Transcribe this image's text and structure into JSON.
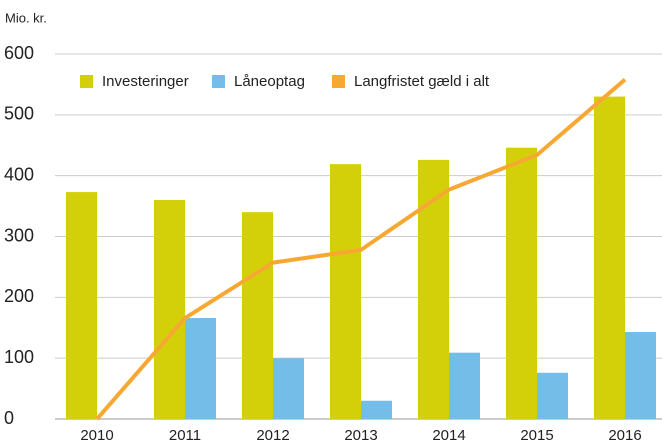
{
  "chart_data": {
    "type": "bar",
    "y_label": "Mio. kr.",
    "categories": [
      "2010",
      "2011",
      "2012",
      "2013",
      "2014",
      "2015",
      "2016"
    ],
    "series": [
      {
        "name": "Investeringer",
        "color": "#d3d00a",
        "values": [
          373,
          360,
          340,
          419,
          426,
          446,
          530
        ]
      },
      {
        "name": "Låneoptag",
        "color": "#74bde8",
        "values": [
          0,
          166,
          100,
          30,
          109,
          76,
          143
        ]
      },
      {
        "name": "Langfristet gæld i alt",
        "color": "#f7a833",
        "type": "line",
        "values": [
          0,
          166,
          257,
          278,
          377,
          434,
          558
        ]
      }
    ],
    "ylim": [
      0,
      600
    ],
    "yticks": [
      0,
      100,
      200,
      300,
      400,
      500,
      600
    ],
    "grid": true,
    "legend": "top-left"
  }
}
